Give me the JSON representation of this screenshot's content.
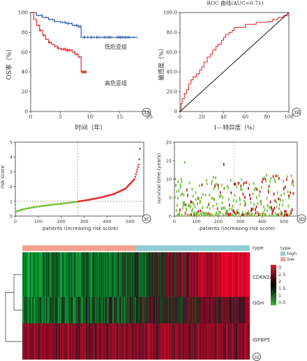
{
  "chart_data": [
    {
      "id": "3A",
      "type": "line",
      "xlabel": "时间（年）",
      "ylabel": "OS率（%）",
      "xlim": [
        0,
        20
      ],
      "ylim": [
        0,
        100
      ],
      "xticks": [
        "0",
        "5",
        "10",
        "15",
        "20"
      ],
      "yticks": [
        "0",
        "20",
        "40",
        "60",
        "80",
        "100"
      ],
      "series": [
        {
          "name": "低危亚组",
          "color": "#3a5fb0",
          "x": [
            0,
            1,
            2,
            3,
            4,
            5,
            6,
            7,
            8,
            8.5,
            9,
            10,
            12,
            15,
            18
          ],
          "y": [
            100,
            97,
            95,
            93,
            91,
            90,
            89,
            87,
            86,
            75,
            75,
            75,
            75,
            75,
            75
          ]
        },
        {
          "name": "高危亚组",
          "color": "#e03030",
          "x": [
            0,
            0.5,
            1,
            1.5,
            2,
            2.5,
            3,
            3.5,
            4,
            4.5,
            5,
            6,
            7,
            7.5,
            8,
            8.5,
            9,
            9.5
          ],
          "y": [
            100,
            93,
            87,
            82,
            77,
            73,
            70,
            68,
            66,
            64,
            63,
            62,
            60,
            58,
            55,
            40,
            40,
            40
          ]
        }
      ],
      "panel_label": "3A"
    },
    {
      "id": "3B",
      "type": "line",
      "title": "ROC 曲线(AUC=0.71)",
      "xlabel": "1—特异度（%）",
      "ylabel": "敏感度（%）",
      "xlim": [
        0,
        100
      ],
      "ylim": [
        0,
        100
      ],
      "xticks": [
        "0",
        "20",
        "40",
        "60",
        "80",
        "100"
      ],
      "yticks": [
        "0",
        "20.0",
        "40.0",
        "60.0",
        "80.0",
        "100.0"
      ],
      "series": [
        {
          "name": "ROC",
          "color": "#e03030",
          "x": [
            0,
            1,
            2,
            4,
            6,
            8,
            10,
            12,
            15,
            18,
            20,
            22,
            25,
            28,
            30,
            33,
            35,
            38,
            40,
            42,
            45,
            48,
            50,
            55,
            60,
            65,
            70,
            75,
            80,
            85,
            90,
            95,
            100
          ],
          "y": [
            0,
            8,
            13,
            18,
            22,
            28,
            32,
            35,
            38,
            42,
            45,
            50,
            55,
            58,
            62,
            66,
            68,
            72,
            75,
            78,
            80,
            82,
            85,
            85,
            88,
            88,
            90,
            90,
            91,
            93,
            95,
            97,
            100
          ]
        },
        {
          "name": "reference",
          "color": "#000000",
          "x": [
            0,
            100
          ],
          "y": [
            0,
            100
          ]
        }
      ],
      "panel_label": "3B"
    },
    {
      "id": "3C",
      "type": "scatter",
      "xlabel": "patients (increasing risk score)",
      "ylabel": "risk score",
      "xlim": [
        0,
        560
      ],
      "ylim": [
        0,
        5
      ],
      "xticks": [
        "0",
        "100",
        "200",
        "300",
        "400",
        "500"
      ],
      "yticks": [
        "0",
        "1",
        "2",
        "3",
        "4",
        "5"
      ],
      "n_patients": 545,
      "cutoff_index": 272,
      "cutoff_value": 1.0,
      "curve_points": [
        [
          1,
          0.28
        ],
        [
          30,
          0.45
        ],
        [
          80,
          0.6
        ],
        [
          150,
          0.75
        ],
        [
          220,
          0.87
        ],
        [
          272,
          0.98
        ],
        [
          320,
          1.1
        ],
        [
          380,
          1.28
        ],
        [
          430,
          1.5
        ],
        [
          480,
          1.85
        ],
        [
          520,
          2.5
        ],
        [
          540,
          3.6
        ],
        [
          545,
          4.8
        ]
      ],
      "colors": {
        "low": "#7cc242",
        "high": "#e03030"
      },
      "panel_label": "3C"
    },
    {
      "id": "3D",
      "type": "scatter",
      "xlabel": "patients (increasing risk score)",
      "ylabel": "survival time (years)",
      "xlim": [
        0,
        560
      ],
      "ylim": [
        0,
        20
      ],
      "xticks": [
        "0",
        "100",
        "200",
        "300",
        "400",
        "500"
      ],
      "yticks": [
        "0",
        "5",
        "10",
        "15",
        "20"
      ],
      "cutoff_index": 272,
      "colors": {
        "alive": "#7cc242",
        "dead": "#c02020"
      },
      "panel_label": "3D"
    },
    {
      "id": "3E",
      "type": "heatmap",
      "rows": [
        "CDKN2A",
        "GGH",
        "IGFBP5"
      ],
      "type_label": "type",
      "legend": {
        "title": "type",
        "entries": [
          {
            "label": "high",
            "color": "#8fcfd4"
          },
          {
            "label": "low",
            "color": "#f4a08f"
          }
        ],
        "scale_ticks": [
          "3",
          "2.5",
          "2",
          "1.5",
          "1",
          "0.5"
        ],
        "scale_colors": [
          "#e02030",
          "#000000",
          "#3bb040"
        ]
      },
      "annotation_colors": {
        "low": "#f4a08f",
        "high": "#8fcfd4"
      },
      "panel_label": "3E"
    }
  ]
}
